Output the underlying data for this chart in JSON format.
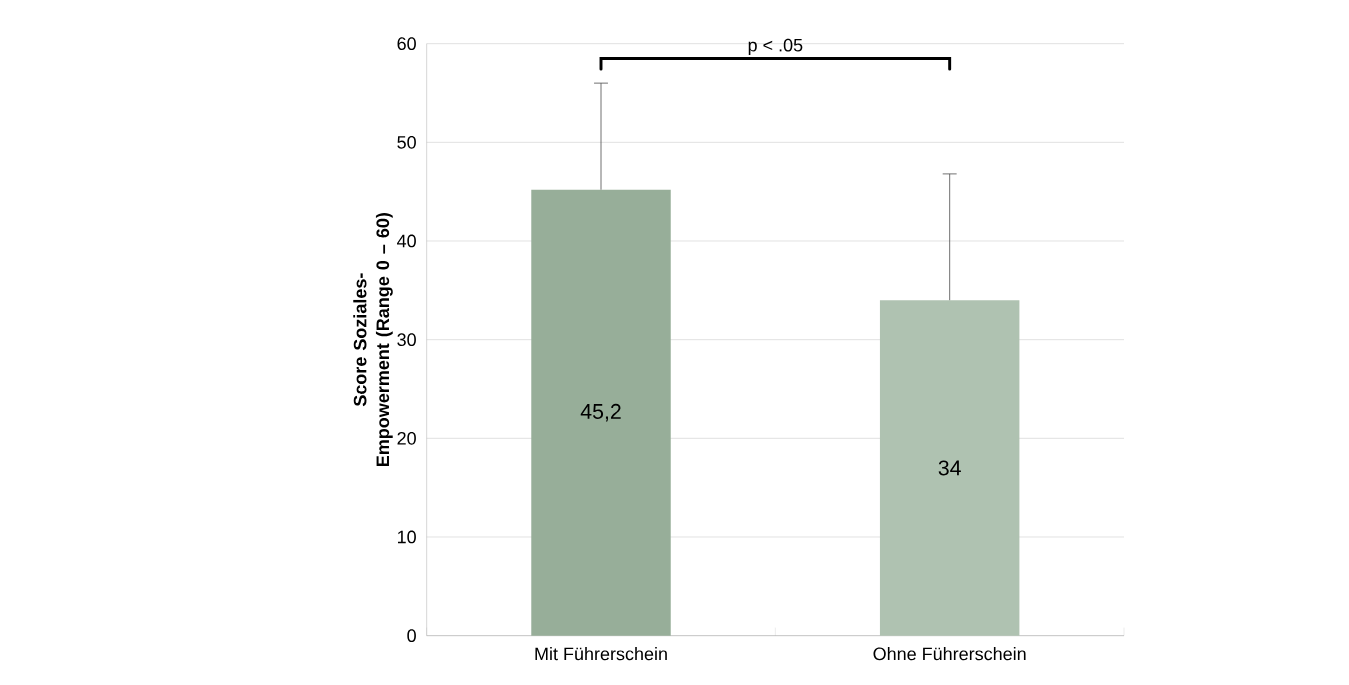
{
  "chart_data": {
    "type": "bar",
    "ylabel": "Score Soziales-Empowerment (Range 0 – 60)",
    "categories": [
      "Mit Führerschein",
      "Ohne Führerschein"
    ],
    "values": [
      45.2,
      34
    ],
    "colors": [
      "#97ae99",
      "#afc2b1"
    ],
    "errors": [
      [
        45.2,
        56
      ],
      [
        34,
        46.8
      ]
    ],
    "value_labels": [
      "45,2",
      "34"
    ],
    "ylim": [
      0,
      60
    ],
    "yticks": [
      0,
      10,
      20,
      30,
      40,
      50,
      60
    ],
    "grid": "y",
    "annotations": [
      "p < .05"
    ]
  }
}
